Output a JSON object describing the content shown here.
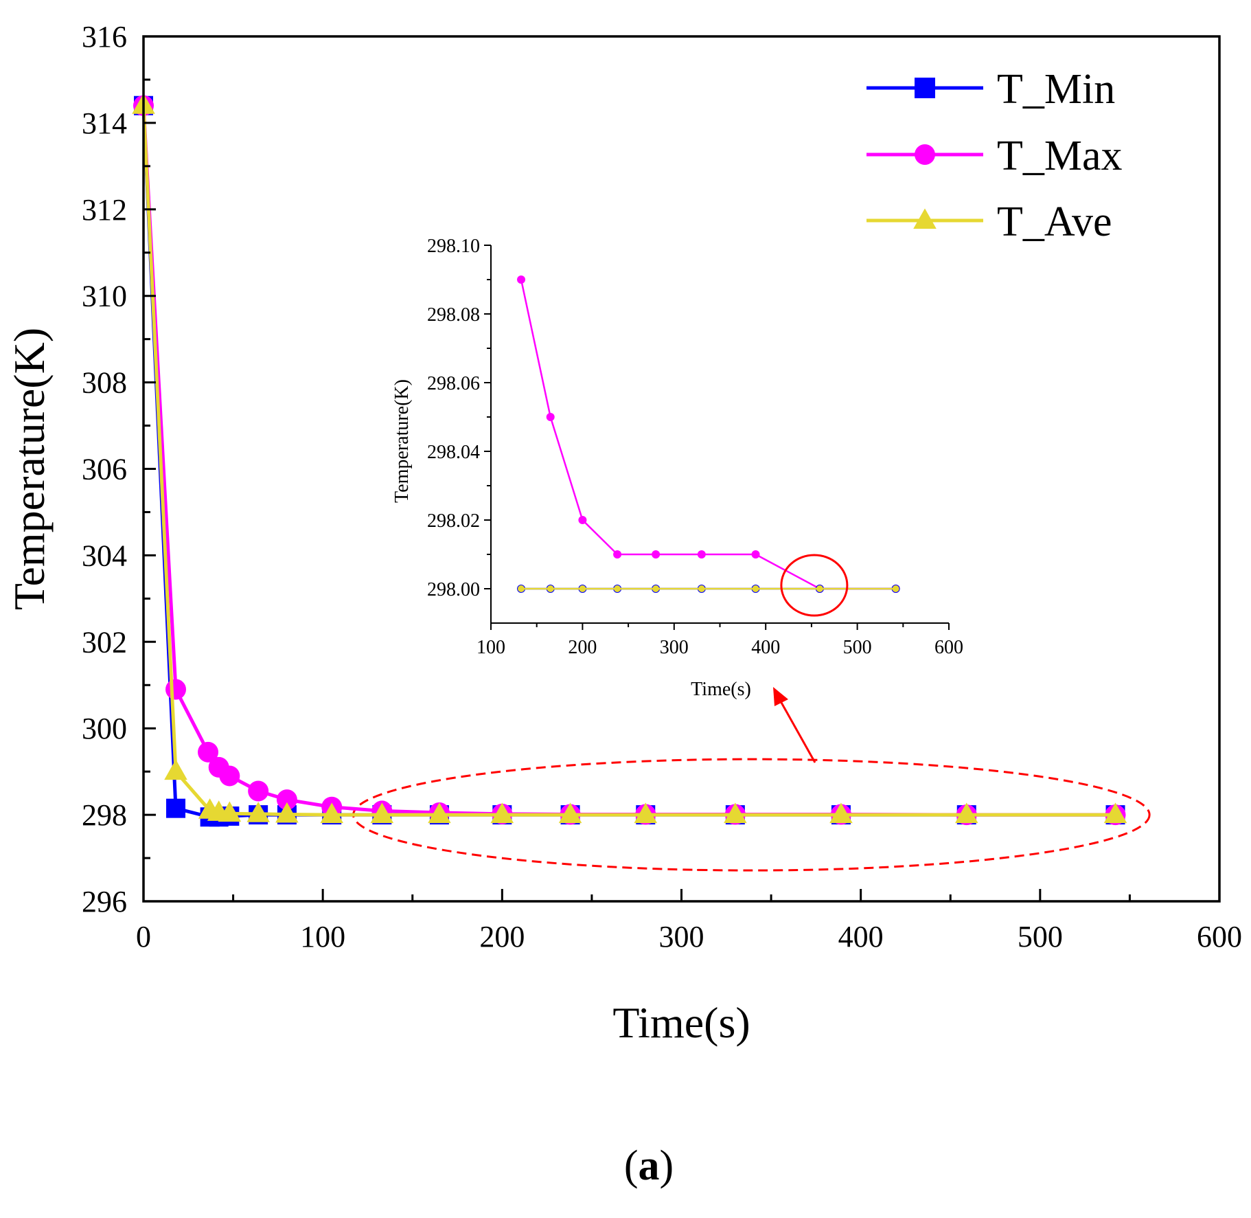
{
  "chart_data": [
    {
      "name": "main",
      "type": "line",
      "title": "",
      "xlabel": "Time(s)",
      "ylabel": "Temperature(K)",
      "xlim": [
        0,
        600
      ],
      "ylim": [
        296,
        316
      ],
      "xticks": [
        0,
        100,
        200,
        300,
        400,
        500,
        600
      ],
      "yticks": [
        296,
        298,
        300,
        302,
        304,
        306,
        308,
        310,
        312,
        314,
        316
      ],
      "xtick_labels": [
        "0",
        "100",
        "200",
        "300",
        "400",
        "500",
        "600"
      ],
      "ytick_labels": [
        "296",
        "298",
        "300",
        "302",
        "304",
        "306",
        "308",
        "310",
        "312",
        "314",
        "316"
      ],
      "grid": false,
      "legend_position": "top-right",
      "series": [
        {
          "name": "T_Min",
          "color": "#0000ff",
          "marker": "square",
          "x": [
            0,
            18,
            37,
            42,
            48,
            64,
            80,
            105,
            133,
            165,
            200,
            238,
            280,
            330,
            389,
            459,
            542
          ],
          "y": [
            314.4,
            298.15,
            297.95,
            297.95,
            297.97,
            298.0,
            298.0,
            298.0,
            298.0,
            298.0,
            298.0,
            298.0,
            298.0,
            298.0,
            298.0,
            298.0,
            298.0
          ]
        },
        {
          "name": "T_Max",
          "color": "#ff00ff",
          "marker": "circle",
          "x": [
            0,
            18,
            36,
            42,
            48,
            64,
            80,
            105,
            133,
            165,
            200,
            238,
            280,
            330,
            389,
            459,
            542
          ],
          "y": [
            314.4,
            300.9,
            299.45,
            299.1,
            298.9,
            298.55,
            298.35,
            298.18,
            298.09,
            298.05,
            298.02,
            298.01,
            298.01,
            298.01,
            298.01,
            298.0,
            298.0
          ]
        },
        {
          "name": "T_Ave",
          "color": "#e6d832",
          "marker": "triangle",
          "x": [
            0,
            18,
            37,
            42,
            48,
            64,
            80,
            105,
            133,
            165,
            200,
            238,
            280,
            330,
            389,
            459,
            542
          ],
          "y": [
            314.4,
            299.0,
            298.1,
            298.05,
            298.03,
            298.02,
            298.01,
            298.0,
            298.0,
            298.0,
            298.0,
            298.0,
            298.0,
            298.0,
            298.0,
            298.0,
            298.0
          ]
        }
      ],
      "annotations": [
        {
          "kind": "dashed-ellipse",
          "color": "#ff0000",
          "x_range": [
            117,
            561
          ],
          "y_range": [
            297.0,
            299.0
          ]
        },
        {
          "kind": "arrow",
          "color": "#ff0000",
          "from": "dashed-ellipse",
          "to": "inset-x-axis-title"
        }
      ]
    },
    {
      "name": "inset",
      "type": "line",
      "title": "",
      "xlabel": "Time(s)",
      "ylabel": "Temperature(K)",
      "xlim": [
        100,
        600
      ],
      "ylim": [
        297.99,
        298.1
      ],
      "xticks": [
        100,
        200,
        300,
        400,
        500,
        600
      ],
      "yticks": [
        298.0,
        298.02,
        298.04,
        298.06,
        298.08,
        298.1
      ],
      "xtick_labels": [
        "100",
        "200",
        "300",
        "400",
        "500",
        "600"
      ],
      "ytick_labels": [
        "298.00",
        "298.02",
        "298.04",
        "298.06",
        "298.08",
        "298.10"
      ],
      "grid": false,
      "series": [
        {
          "name": "T_Min",
          "color": "#0000ff",
          "x": [
            133,
            165,
            200,
            238,
            280,
            330,
            389,
            459,
            542
          ],
          "y": [
            298.0,
            298.0,
            298.0,
            298.0,
            298.0,
            298.0,
            298.0,
            298.0,
            298.0
          ]
        },
        {
          "name": "T_Max",
          "color": "#ff00ff",
          "x": [
            133,
            165,
            200,
            238,
            280,
            330,
            389,
            459,
            542
          ],
          "y": [
            298.09,
            298.05,
            298.02,
            298.01,
            298.01,
            298.01,
            298.01,
            298.0,
            298.0
          ]
        },
        {
          "name": "T_Ave",
          "color": "#e6d832",
          "x": [
            133,
            165,
            200,
            238,
            280,
            330,
            389,
            459,
            542
          ],
          "y": [
            298.0,
            298.0,
            298.0,
            298.0,
            298.0,
            298.0,
            298.0,
            298.0,
            298.0
          ]
        }
      ],
      "annotations": [
        {
          "kind": "circle",
          "color": "#ff0000",
          "x": 453,
          "y": 298.001
        }
      ]
    }
  ],
  "caption": {
    "open": "(",
    "label": "a",
    "close": ")"
  }
}
